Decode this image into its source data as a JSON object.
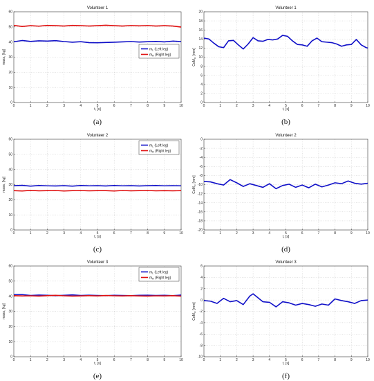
{
  "chart_data": [
    {
      "id": "a",
      "type": "line",
      "caption": "(a)",
      "title": "Volunteer 1",
      "xlabel": "t, [s]",
      "ylabel": "mass, [kg]",
      "xlim": [
        0,
        10
      ],
      "ylim": [
        0,
        60
      ],
      "xticks": [
        0,
        1,
        2,
        3,
        4,
        5,
        6,
        7,
        8,
        9,
        10
      ],
      "yticks": [
        0,
        10,
        20,
        30,
        40,
        50,
        60
      ],
      "grid": true,
      "legend": "right, upper-middle",
      "series": [
        {
          "name": "mL (Left leg)",
          "name_main": "m",
          "name_sub": "L",
          "name_rest": " (Left leg)",
          "color": "#1010c8",
          "x": [
            0,
            0.5,
            1,
            1.5,
            2,
            2.5,
            3,
            3.5,
            4,
            4.5,
            5,
            5.5,
            6,
            6.5,
            7,
            7.5,
            8,
            8.5,
            9,
            9.5,
            10
          ],
          "y": [
            40.2,
            41.0,
            40.4,
            40.8,
            40.6,
            40.9,
            40.3,
            39.9,
            40.2,
            39.6,
            39.5,
            39.7,
            39.9,
            40.1,
            40.3,
            40.0,
            40.2,
            40.4,
            40.1,
            40.6,
            40.3
          ]
        },
        {
          "name": "mR (Right leg)",
          "name_main": "m",
          "name_sub": "R",
          "name_rest": " (Right leg)",
          "color": "#e01010",
          "x": [
            0,
            0.5,
            1,
            1.5,
            2,
            2.5,
            3,
            3.5,
            4,
            4.5,
            5,
            5.5,
            6,
            6.5,
            7,
            7.5,
            8,
            8.5,
            9,
            9.5,
            10
          ],
          "y": [
            51.0,
            50.3,
            50.8,
            50.5,
            51.0,
            50.8,
            50.6,
            51.0,
            50.8,
            50.6,
            50.8,
            51.1,
            50.8,
            50.6,
            50.9,
            50.7,
            50.9,
            50.6,
            50.8,
            50.6,
            49.9
          ]
        }
      ]
    },
    {
      "id": "b",
      "type": "line",
      "caption": "(b)",
      "title": "Volunteer 1",
      "xlabel": "t, [s]",
      "ylabel": "CoMx, [mm]",
      "ylabel_main": "CoM",
      "ylabel_sub": "x",
      "ylabel_rest": ", [mm]",
      "xlim": [
        0,
        10
      ],
      "ylim": [
        0,
        20
      ],
      "xticks": [
        0,
        1,
        2,
        3,
        4,
        5,
        6,
        7,
        8,
        9,
        10
      ],
      "yticks": [
        0,
        2,
        4,
        6,
        8,
        10,
        12,
        14,
        16,
        18,
        20
      ],
      "grid": true,
      "series": [
        {
          "name": "",
          "color": "#1010c8",
          "x": [
            0,
            0.3,
            0.6,
            0.9,
            1.2,
            1.5,
            1.8,
            2.1,
            2.4,
            2.7,
            3.0,
            3.3,
            3.6,
            3.9,
            4.2,
            4.5,
            4.8,
            5.1,
            5.4,
            5.7,
            6.0,
            6.3,
            6.6,
            6.9,
            7.2,
            7.5,
            7.8,
            8.1,
            8.4,
            8.7,
            9.0,
            9.3,
            9.6,
            9.9,
            10
          ],
          "y": [
            14.2,
            14.0,
            13.1,
            12.3,
            12.1,
            13.6,
            13.7,
            12.7,
            11.8,
            12.9,
            14.3,
            13.6,
            13.5,
            13.9,
            13.8,
            14.0,
            14.8,
            14.6,
            13.6,
            12.8,
            12.7,
            12.4,
            13.6,
            14.2,
            13.4,
            13.3,
            13.2,
            12.9,
            12.4,
            12.7,
            12.8,
            13.9,
            12.7,
            12.1,
            12.0
          ]
        }
      ]
    },
    {
      "id": "c",
      "type": "line",
      "caption": "(c)",
      "title": "Volunteer 2",
      "xlabel": "t, [s]",
      "ylabel": "mass, [kg]",
      "xlim": [
        0,
        10
      ],
      "ylim": [
        0,
        60
      ],
      "xticks": [
        0,
        1,
        2,
        3,
        4,
        5,
        6,
        7,
        8,
        9,
        10
      ],
      "yticks": [
        0,
        10,
        20,
        30,
        40,
        50,
        60
      ],
      "grid": true,
      "legend": "top-right",
      "series": [
        {
          "name": "mL (Left leg)",
          "name_main": "m",
          "name_sub": "L",
          "name_rest": " (Left leg)",
          "color": "#1010c8",
          "x": [
            0,
            0.5,
            1,
            1.5,
            2,
            2.5,
            3,
            3.5,
            4,
            4.5,
            5,
            5.5,
            6,
            6.5,
            7,
            7.5,
            8,
            8.5,
            9,
            9.5,
            10
          ],
          "y": [
            29.3,
            29.5,
            29.0,
            29.4,
            29.2,
            29.1,
            29.3,
            29.0,
            29.4,
            29.2,
            29.3,
            29.1,
            29.4,
            29.2,
            29.3,
            29.1,
            29.3,
            29.4,
            29.2,
            29.3,
            29.2
          ]
        },
        {
          "name": "mR (Right leg)",
          "name_main": "m",
          "name_sub": "R",
          "name_rest": " (Right leg)",
          "color": "#e01010",
          "x": [
            0,
            0.5,
            1,
            1.5,
            2,
            2.5,
            3,
            3.5,
            4,
            4.5,
            5,
            5.5,
            6,
            6.5,
            7,
            7.5,
            8,
            8.5,
            9,
            9.5,
            10
          ],
          "y": [
            26.0,
            25.8,
            26.2,
            25.9,
            26.0,
            26.1,
            25.8,
            26.0,
            26.1,
            25.9,
            26.0,
            26.0,
            25.8,
            26.1,
            25.9,
            26.0,
            26.1,
            25.9,
            26.0,
            25.9,
            26.0
          ]
        }
      ]
    },
    {
      "id": "d",
      "type": "line",
      "caption": "(d)",
      "title": "Volunteer 2",
      "xlabel": "t, [s]",
      "ylabel": "CoMx, [mm]",
      "ylabel_main": "CoM",
      "ylabel_sub": "x",
      "ylabel_rest": ", [mm]",
      "xlim": [
        0,
        10
      ],
      "ylim": [
        -20,
        0
      ],
      "xticks": [
        0,
        1,
        2,
        3,
        4,
        5,
        6,
        7,
        8,
        9,
        10
      ],
      "yticks": [
        0,
        -2,
        -4,
        -6,
        -8,
        -10,
        -12,
        -14,
        -16,
        -18,
        -20
      ],
      "grid": true,
      "series": [
        {
          "name": "",
          "color": "#1010c8",
          "x": [
            0,
            0.4,
            0.8,
            1.2,
            1.6,
            2.0,
            2.4,
            2.8,
            3.2,
            3.6,
            4.0,
            4.4,
            4.8,
            5.2,
            5.6,
            6.0,
            6.4,
            6.8,
            7.2,
            7.6,
            8.0,
            8.4,
            8.8,
            9.2,
            9.6,
            10
          ],
          "y": [
            -9.3,
            -9.4,
            -9.8,
            -10.1,
            -8.9,
            -9.6,
            -10.4,
            -9.8,
            -10.2,
            -10.6,
            -9.8,
            -10.9,
            -10.2,
            -9.9,
            -10.6,
            -10.1,
            -10.7,
            -9.9,
            -10.5,
            -10.1,
            -9.6,
            -9.8,
            -9.2,
            -9.7,
            -9.9,
            -9.7
          ]
        }
      ]
    },
    {
      "id": "e",
      "type": "line",
      "caption": "(e)",
      "title": "Volunteer 3",
      "xlabel": "t, [s]",
      "ylabel": "mass, [kg]",
      "xlim": [
        0,
        10
      ],
      "ylim": [
        0,
        60
      ],
      "xticks": [
        0,
        1,
        2,
        3,
        4,
        5,
        6,
        7,
        8,
        9,
        10
      ],
      "yticks": [
        0,
        10,
        20,
        30,
        40,
        50,
        60
      ],
      "grid": true,
      "legend": "top-right",
      "series": [
        {
          "name": "mL (Left leg)",
          "name_main": "m",
          "name_sub": "L",
          "name_rest": " (Left leg)",
          "color": "#1010c8",
          "x": [
            0,
            0.5,
            1,
            1.5,
            2,
            2.5,
            3,
            3.5,
            4,
            4.5,
            5,
            5.5,
            6,
            6.5,
            7,
            7.5,
            8,
            8.5,
            9,
            9.5,
            10
          ],
          "y": [
            41.0,
            41.1,
            40.5,
            40.8,
            40.6,
            40.4,
            40.6,
            40.9,
            40.5,
            40.7,
            40.5,
            40.4,
            40.6,
            40.5,
            40.4,
            40.6,
            40.7,
            40.5,
            40.6,
            40.4,
            40.8
          ]
        },
        {
          "name": "mR (Right leg)",
          "name_main": "m",
          "name_sub": "R",
          "name_rest": " (Right leg)",
          "color": "#e01010",
          "x": [
            0,
            0.5,
            1,
            1.5,
            2,
            2.5,
            3,
            3.5,
            4,
            4.5,
            5,
            5.5,
            6,
            6.5,
            7,
            7.5,
            8,
            8.5,
            9,
            9.5,
            10
          ],
          "y": [
            40.4,
            40.2,
            40.3,
            40.1,
            40.4,
            40.6,
            40.3,
            40.1,
            40.2,
            40.4,
            40.2,
            40.5,
            40.3,
            40.2,
            40.4,
            40.2,
            40.1,
            40.3,
            40.2,
            40.4,
            40.1
          ]
        }
      ]
    },
    {
      "id": "f",
      "type": "line",
      "caption": "(f)",
      "title": "Volunteer 3",
      "xlabel": "t, [s]",
      "ylabel": "CoMx, [mm]",
      "ylabel_main": "CoM",
      "ylabel_sub": "x",
      "ylabel_rest": ", [mm]",
      "xlim": [
        0,
        10
      ],
      "ylim": [
        -10,
        6
      ],
      "xticks": [
        0,
        1,
        2,
        3,
        4,
        5,
        6,
        7,
        8,
        9,
        10
      ],
      "yticks": [
        6,
        4,
        2,
        0,
        -2,
        -4,
        -6,
        -8,
        -10
      ],
      "grid": true,
      "series": [
        {
          "name": "",
          "color": "#1010c8",
          "x": [
            0,
            0.4,
            0.8,
            1.2,
            1.6,
            2.0,
            2.4,
            2.8,
            3.0,
            3.3,
            3.6,
            4.0,
            4.4,
            4.8,
            5.2,
            5.6,
            6.0,
            6.4,
            6.8,
            7.2,
            7.6,
            8.0,
            8.4,
            8.8,
            9.2,
            9.6,
            10
          ],
          "y": [
            -0.1,
            -0.2,
            -0.6,
            0.3,
            -0.3,
            -0.1,
            -0.8,
            0.7,
            1.1,
            0.4,
            -0.3,
            -0.4,
            -1.2,
            -0.3,
            -0.5,
            -0.9,
            -0.6,
            -0.8,
            -1.1,
            -0.7,
            -0.9,
            0.2,
            -0.1,
            -0.3,
            -0.6,
            -0.1,
            0.0
          ]
        }
      ]
    }
  ]
}
